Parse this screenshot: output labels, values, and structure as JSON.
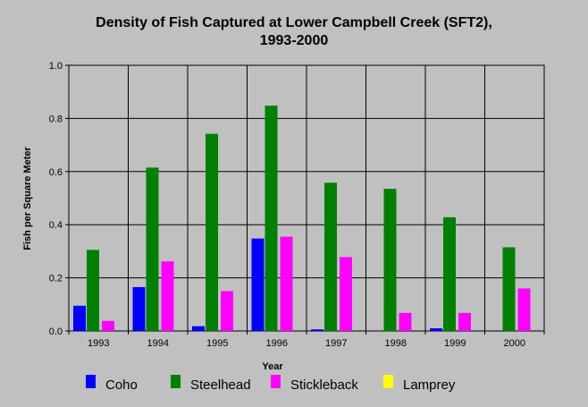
{
  "chart_data": {
    "type": "bar",
    "title": [
      "Density of Fish Captured at Lower Campbell Creek (SFT2),",
      "1993-2000"
    ],
    "xlabel": "Year",
    "ylabel": "Fish per Square Meter",
    "ylim": [
      0,
      1.0
    ],
    "yticks": [
      "0.0",
      "0.2",
      "0.4",
      "0.6",
      "0.8",
      "1.0"
    ],
    "grid": true,
    "legend_position": "bottom",
    "categories": [
      "1993",
      "1994",
      "1995",
      "1996",
      "1997",
      "1998",
      "1999",
      "2000"
    ],
    "series": [
      {
        "name": "Coho",
        "color": "#0000ff",
        "values": [
          0.095,
          0.165,
          0.018,
          0.348,
          0.006,
          0.0,
          0.01,
          0.0
        ]
      },
      {
        "name": "Steelhead",
        "color": "#008000",
        "values": [
          0.305,
          0.615,
          0.742,
          0.848,
          0.558,
          0.535,
          0.428,
          0.315
        ]
      },
      {
        "name": "Stickleback",
        "color": "#ff00ff",
        "values": [
          0.038,
          0.262,
          0.15,
          0.355,
          0.278,
          0.068,
          0.068,
          0.16
        ]
      },
      {
        "name": "Lamprey",
        "color": "#ffff00",
        "values": [
          0,
          0,
          0,
          0,
          0,
          0,
          0,
          0
        ]
      }
    ]
  }
}
